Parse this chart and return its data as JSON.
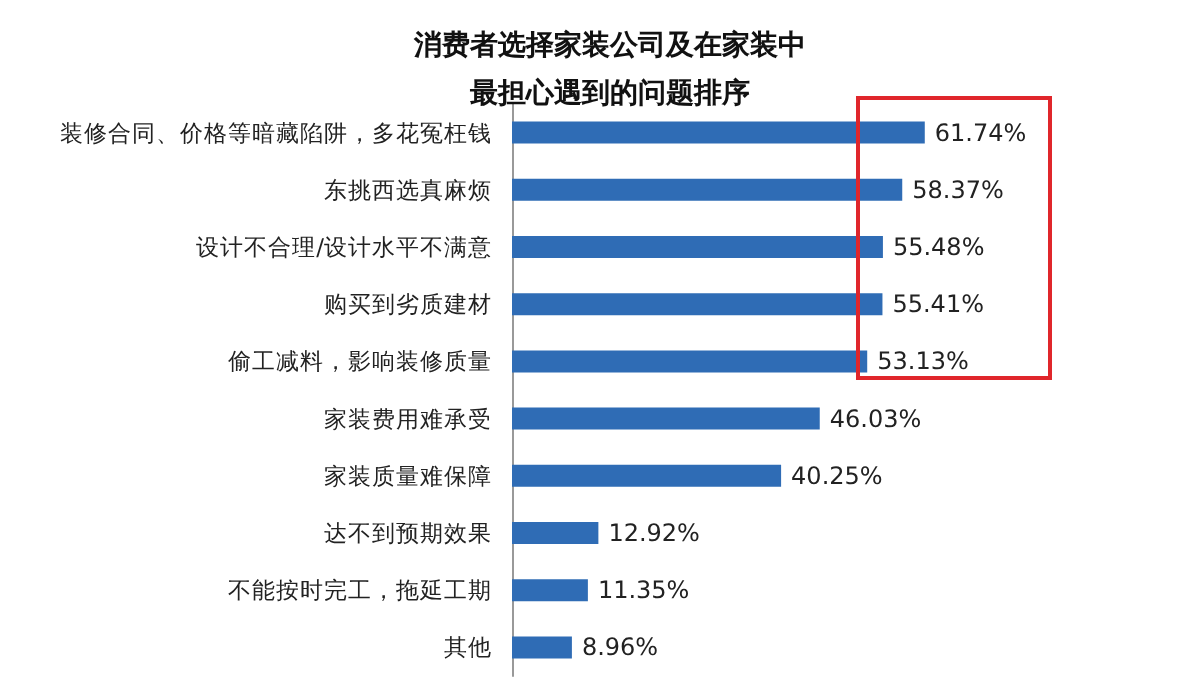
{
  "chart_data": {
    "type": "bar",
    "orientation": "horizontal",
    "title": "消费者选择家装公司及在家装中最担心遇到的问题排序",
    "categories": [
      "装修合同、价格等暗藏陷阱，多花冤枉钱",
      "东挑西选真麻烦",
      "设计不合理/设计水平不满意",
      "购买到劣质建材",
      "偷工减料，影响装修质量",
      "家装费用难承受",
      "家装质量难保障",
      "达不到预期效果",
      "不能按时完工，拖延工期",
      "其他"
    ],
    "values": [
      61.74,
      58.37,
      55.48,
      55.41,
      53.13,
      46.03,
      40.25,
      12.92,
      11.35,
      8.96
    ],
    "value_labels": [
      "61.74%",
      "58.37%",
      "55.48%",
      "55.41%",
      "53.13%",
      "46.03%",
      "40.25%",
      "12.92%",
      "11.35%",
      "8.96%"
    ],
    "color": "#2f6cb5"
  }
}
